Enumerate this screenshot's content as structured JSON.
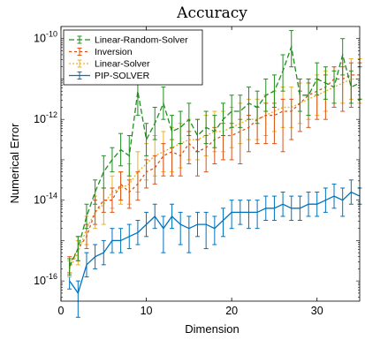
{
  "chart_data": {
    "type": "line",
    "title": "Accuracy",
    "xlabel": "Dimension",
    "ylabel": "Numerical Error",
    "xlim": [
      0,
      35
    ],
    "ylim_log10": [
      -16.5,
      -9.7
    ],
    "y_scale": "log",
    "x_ticks": [
      0,
      10,
      20,
      30
    ],
    "y_ticks_exp": [
      -16,
      -14,
      -12,
      -10
    ],
    "legend_position": "top-left",
    "x": [
      1,
      2,
      3,
      4,
      5,
      6,
      7,
      8,
      9,
      10,
      11,
      12,
      13,
      14,
      15,
      16,
      17,
      18,
      19,
      20,
      21,
      22,
      23,
      24,
      25,
      26,
      27,
      28,
      29,
      30,
      31,
      32,
      33,
      34,
      35
    ],
    "series": [
      {
        "name": "Linear-Random-Solver",
        "color": "#1f8f1f",
        "dash": "6,3",
        "log10": [
          -15.65,
          -15.2,
          -14.4,
          -13.8,
          -13.3,
          -13.0,
          -12.75,
          -12.9,
          -11.3,
          -12.5,
          -12.1,
          -11.6,
          -12.3,
          -12.2,
          -12.0,
          -12.4,
          -12.2,
          -12.3,
          -12.0,
          -11.8,
          -11.8,
          -11.6,
          -11.7,
          -11.4,
          -11.3,
          -10.8,
          -10.2,
          -11.4,
          -11.4,
          -11.0,
          -11.1,
          -11.2,
          -10.4,
          -11.2,
          -11.1
        ],
        "err_lo": [
          0.2,
          0.3,
          0.3,
          0.3,
          0.4,
          0.3,
          0.4,
          0.5,
          0.6,
          0.4,
          0.4,
          0.4,
          0.4,
          0.4,
          0.4,
          0.4,
          0.4,
          0.4,
          0.4,
          0.4,
          0.4,
          0.4,
          0.4,
          0.4,
          0.4,
          0.5,
          0.5,
          0.4,
          0.5,
          0.4,
          0.4,
          0.4,
          0.5,
          0.4,
          0.4
        ],
        "err_hi": [
          0.2,
          0.3,
          0.3,
          0.3,
          0.4,
          0.3,
          0.4,
          0.5,
          0.4,
          0.4,
          0.4,
          0.4,
          0.4,
          0.4,
          0.4,
          0.4,
          0.4,
          0.4,
          0.4,
          0.4,
          0.4,
          0.4,
          0.4,
          0.4,
          0.4,
          0.4,
          0.4,
          0.4,
          0.4,
          0.4,
          0.4,
          0.4,
          0.4,
          0.4,
          0.4
        ]
      },
      {
        "name": "Inversion",
        "color": "#d95319",
        "dash": "3,3",
        "log10": [
          -15.6,
          -15.2,
          -14.9,
          -14.3,
          -14.0,
          -14.0,
          -13.6,
          -13.8,
          -13.6,
          -13.3,
          -13.2,
          -12.9,
          -12.8,
          -12.9,
          -12.6,
          -12.8,
          -12.7,
          -12.5,
          -12.4,
          -12.4,
          -12.3,
          -12.2,
          -12.0,
          -11.9,
          -11.9,
          -11.8,
          -11.8,
          -11.6,
          -11.4,
          -11.3,
          -11.2,
          -11.0,
          -11.0,
          -10.9,
          -10.9
        ],
        "err_lo": [
          0.2,
          0.3,
          0.3,
          0.3,
          0.3,
          0.3,
          0.4,
          0.4,
          0.4,
          0.4,
          0.4,
          0.5,
          0.6,
          0.5,
          0.5,
          0.6,
          0.6,
          0.6,
          0.6,
          0.6,
          0.8,
          0.6,
          0.6,
          0.7,
          0.7,
          1.0,
          0.7,
          0.7,
          0.8,
          0.7,
          0.8,
          0.7,
          0.8,
          0.8,
          0.6
        ],
        "err_hi": [
          0.2,
          0.3,
          0.3,
          0.3,
          0.3,
          0.3,
          0.3,
          0.3,
          0.3,
          0.3,
          0.3,
          0.3,
          0.3,
          0.3,
          0.3,
          0.3,
          0.3,
          0.3,
          0.3,
          0.3,
          0.3,
          0.3,
          0.3,
          0.3,
          0.3,
          0.3,
          0.3,
          0.3,
          0.3,
          0.3,
          0.3,
          0.3,
          0.3,
          0.3,
          0.3
        ]
      },
      {
        "name": "Linear-Solver",
        "color": "#edb120",
        "dash": "2,2",
        "log10": [
          -15.7,
          -15.3,
          -14.7,
          -14.3,
          -14.1,
          -13.8,
          -13.7,
          -13.6,
          -13.3,
          -13.1,
          -12.9,
          -12.8,
          -12.7,
          -12.6,
          -12.5,
          -12.5,
          -12.4,
          -12.3,
          -12.3,
          -12.2,
          -12.1,
          -12.0,
          -12.0,
          -11.9,
          -11.8,
          -11.7,
          -11.7,
          -11.6,
          -11.5,
          -11.4,
          -11.3,
          -11.2,
          -11.1,
          -11.0,
          -11.0
        ],
        "err_lo": [
          0.2,
          0.3,
          0.4,
          0.4,
          0.5,
          0.4,
          0.4,
          0.5,
          0.5,
          0.4,
          0.5,
          0.5,
          0.6,
          0.6,
          0.5,
          0.5,
          0.5,
          0.5,
          0.5,
          0.5,
          0.5,
          0.5,
          0.5,
          0.5,
          0.5,
          0.5,
          0.5,
          0.5,
          0.5,
          0.5,
          0.5,
          0.5,
          0.5,
          0.5,
          0.6
        ],
        "err_hi": [
          0.2,
          0.3,
          0.3,
          0.4,
          0.4,
          0.4,
          0.4,
          0.5,
          0.5,
          0.5,
          0.5,
          0.5,
          0.5,
          0.5,
          0.5,
          0.5,
          0.5,
          0.5,
          0.5,
          0.5,
          0.5,
          0.5,
          0.5,
          0.5,
          0.5,
          0.5,
          0.5,
          0.5,
          0.5,
          0.5,
          0.5,
          0.5,
          0.5,
          0.5,
          0.5
        ]
      },
      {
        "name": "PIP-SOLVER",
        "color": "#0072bd",
        "dash": "",
        "log10": [
          -16.0,
          -16.3,
          -15.6,
          -15.4,
          -15.3,
          -15.0,
          -15.0,
          -14.9,
          -14.8,
          -14.6,
          -14.4,
          -14.7,
          -14.4,
          -14.6,
          -14.7,
          -14.6,
          -14.6,
          -14.7,
          -14.5,
          -14.3,
          -14.3,
          -14.3,
          -14.3,
          -14.2,
          -14.2,
          -14.1,
          -14.2,
          -14.2,
          -14.1,
          -14.1,
          -14.0,
          -13.9,
          -14.0,
          -13.8,
          -13.9
        ],
        "err_lo": [
          0.2,
          0.6,
          0.3,
          0.3,
          0.3,
          0.3,
          0.3,
          0.3,
          0.3,
          0.3,
          0.3,
          0.6,
          0.3,
          0.5,
          0.6,
          0.3,
          0.6,
          0.4,
          0.4,
          0.4,
          0.3,
          0.4,
          0.4,
          0.3,
          0.3,
          0.3,
          0.3,
          0.3,
          0.3,
          0.3,
          0.3,
          0.3,
          0.4,
          0.3,
          0.2
        ],
        "err_hi": [
          0.2,
          0.3,
          0.3,
          0.3,
          0.3,
          0.3,
          0.3,
          0.3,
          0.3,
          0.3,
          0.3,
          0.3,
          0.3,
          0.3,
          0.3,
          0.3,
          0.3,
          0.3,
          0.3,
          0.3,
          0.3,
          0.3,
          0.3,
          0.3,
          0.3,
          0.3,
          0.3,
          0.3,
          0.3,
          0.3,
          0.3,
          0.3,
          0.3,
          0.3,
          0.2
        ]
      }
    ]
  }
}
